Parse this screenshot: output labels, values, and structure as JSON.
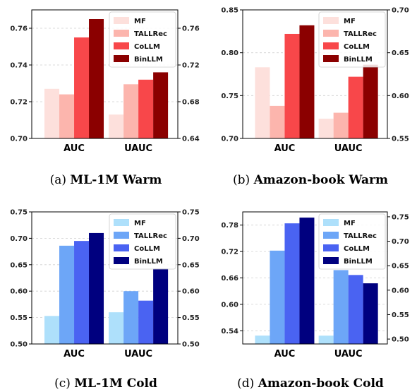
{
  "chart_data": [
    {
      "type": "bar",
      "caption_prefix": "(a)",
      "caption_title": "ML-1M Warm",
      "categories": [
        "AUC",
        "UAUC"
      ],
      "series": [
        {
          "name": "MF",
          "color": "#fde0dc",
          "values": [
            0.727,
            0.666
          ]
        },
        {
          "name": "TALLRec",
          "color": "#fcb5ad",
          "values": [
            0.724,
            0.699
          ]
        },
        {
          "name": "CoLLM",
          "color": "#f8474a",
          "values": [
            0.755,
            0.704
          ]
        },
        {
          "name": "BinLLM",
          "color": "#8b0000",
          "values": [
            0.765,
            0.712
          ]
        }
      ],
      "left_axis": {
        "ylim": [
          0.7,
          0.77
        ],
        "ticks": [
          "0.70",
          "0.72",
          "0.74",
          "0.76"
        ]
      },
      "right_axis": {
        "ylim": [
          0.64,
          0.78
        ],
        "ticks": [
          "0.64",
          "0.68",
          "0.72",
          "0.76"
        ]
      },
      "legend_position": "top-right",
      "grid": "horizontal dashed"
    },
    {
      "type": "bar",
      "caption_prefix": "(b)",
      "caption_title": "Amazon-book Warm",
      "categories": [
        "AUC",
        "UAUC"
      ],
      "series": [
        {
          "name": "MF",
          "color": "#fde0dc",
          "values": [
            0.783,
            0.573
          ]
        },
        {
          "name": "TALLRec",
          "color": "#fcb5ad",
          "values": [
            0.738,
            0.58
          ]
        },
        {
          "name": "CoLLM",
          "color": "#f8474a",
          "values": [
            0.822,
            0.622
          ]
        },
        {
          "name": "BinLLM",
          "color": "#8b0000",
          "values": [
            0.832,
            0.636
          ]
        }
      ],
      "left_axis": {
        "ylim": [
          0.7,
          0.85
        ],
        "ticks": [
          "0.70",
          "0.75",
          "0.80",
          "0.85"
        ]
      },
      "right_axis": {
        "ylim": [
          0.55,
          0.7
        ],
        "ticks": [
          "0.55",
          "0.60",
          "0.65",
          "0.70"
        ]
      },
      "legend_position": "top-right",
      "grid": "horizontal dashed"
    },
    {
      "type": "bar",
      "caption_prefix": "(c)",
      "caption_title": "ML-1M Cold",
      "categories": [
        "AUC",
        "UAUC"
      ],
      "series": [
        {
          "name": "MF",
          "color": "#aee0fb",
          "values": [
            0.553,
            0.56
          ]
        },
        {
          "name": "TALLRec",
          "color": "#6da6f7",
          "values": [
            0.686,
            0.6
          ]
        },
        {
          "name": "CoLLM",
          "color": "#4a63f2",
          "values": [
            0.695,
            0.582
          ]
        },
        {
          "name": "BinLLM",
          "color": "#00007f",
          "values": [
            0.71,
            0.643
          ]
        }
      ],
      "left_axis": {
        "ylim": [
          0.5,
          0.75
        ],
        "ticks": [
          "0.50",
          "0.55",
          "0.60",
          "0.65",
          "0.70",
          "0.75"
        ]
      },
      "right_axis": {
        "ylim": [
          0.5,
          0.75
        ],
        "ticks": [
          "0.50",
          "0.55",
          "0.60",
          "0.65",
          "0.70",
          "0.75"
        ]
      },
      "legend_position": "top-right",
      "grid": "horizontal dashed"
    },
    {
      "type": "bar",
      "caption_prefix": "(d)",
      "caption_title": "Amazon-book Cold",
      "categories": [
        "AUC",
        "UAUC"
      ],
      "series": [
        {
          "name": "MF",
          "color": "#aee0fb",
          "values": [
            0.529,
            0.507
          ]
        },
        {
          "name": "TALLRec",
          "color": "#6da6f7",
          "values": [
            0.722,
            0.641
          ]
        },
        {
          "name": "CoLLM",
          "color": "#4a63f2",
          "values": [
            0.784,
            0.631
          ]
        },
        {
          "name": "BinLLM",
          "color": "#00007f",
          "values": [
            0.797,
            0.614
          ]
        }
      ],
      "left_axis": {
        "ylim": [
          0.51,
          0.81
        ],
        "ticks": [
          "0.54",
          "0.60",
          "0.66",
          "0.72",
          "0.78"
        ]
      },
      "right_axis": {
        "ylim": [
          0.49,
          0.76
        ],
        "ticks": [
          "0.50",
          "0.55",
          "0.60",
          "0.65",
          "0.70",
          "0.75"
        ]
      },
      "legend_position": "top-right",
      "grid": "horizontal dashed"
    }
  ]
}
